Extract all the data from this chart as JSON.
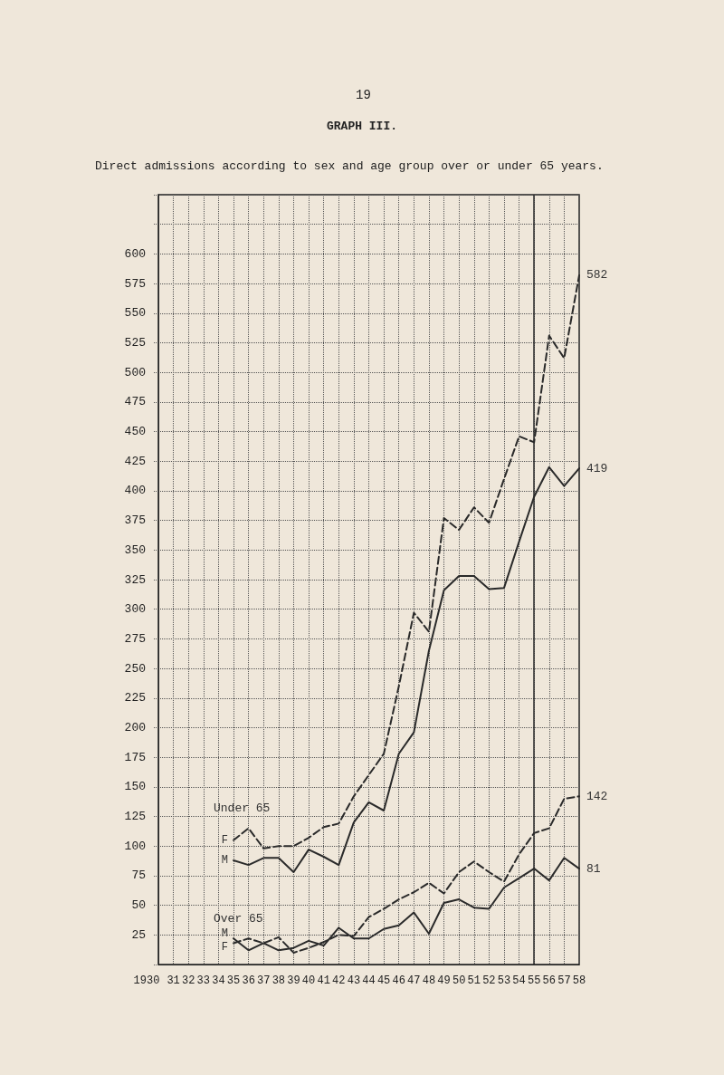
{
  "chart_data": {
    "type": "line",
    "title": "GRAPH III.",
    "subtitle": "Direct admissions according to sex and age group over or under 65 years.",
    "annotations": [
      "19",
      "Under 65",
      "Over 65"
    ],
    "categories": [
      "1930",
      "31",
      "32",
      "33",
      "34",
      "35",
      "36",
      "37",
      "38",
      "39",
      "40",
      "41",
      "42",
      "43",
      "44",
      "45",
      "46",
      "47",
      "48",
      "49",
      "50",
      "51",
      "52",
      "53",
      "54",
      "55",
      "56",
      "57",
      "58"
    ],
    "series": [
      {
        "name": "F",
        "color": "#2a2a2a",
        "line_style": "dashed",
        "values": [
          null,
          null,
          null,
          null,
          null,
          105,
          115,
          98,
          100,
          100,
          107,
          116,
          119,
          142,
          160,
          178,
          235,
          297,
          281,
          377,
          367,
          386,
          373,
          410,
          446,
          441,
          531,
          512,
          582
        ],
        "value_labels": [
          null,
          null,
          null,
          null,
          null,
          null,
          null,
          null,
          null,
          null,
          null,
          null,
          null,
          null,
          null,
          null,
          null,
          null,
          null,
          null,
          null,
          null,
          null,
          null,
          null,
          null,
          null,
          null,
          "582"
        ]
      },
      {
        "name": "M",
        "color": "#2a2a2a",
        "line_style": "solid",
        "values": [
          null,
          null,
          null,
          null,
          null,
          88,
          84,
          90,
          90,
          78,
          97,
          91,
          84,
          120,
          137,
          130,
          178,
          196,
          265,
          316,
          328,
          328,
          317,
          318,
          357,
          395,
          420,
          404,
          419
        ],
        "value_labels": [
          null,
          null,
          null,
          null,
          null,
          null,
          null,
          null,
          null,
          null,
          null,
          null,
          null,
          null,
          null,
          null,
          null,
          null,
          null,
          null,
          null,
          null,
          null,
          null,
          null,
          null,
          null,
          null,
          "419"
        ]
      },
      {
        "name": "M",
        "color": "#2a2a2a",
        "line_style": "solid",
        "values": [
          null,
          null,
          null,
          null,
          null,
          22,
          12,
          18,
          12,
          14,
          20,
          16,
          31,
          22,
          22,
          30,
          33,
          44,
          26,
          52,
          55,
          48,
          47,
          65,
          73,
          81,
          71,
          90,
          81
        ],
        "value_labels": [
          null,
          null,
          null,
          null,
          null,
          null,
          null,
          null,
          null,
          null,
          null,
          null,
          null,
          null,
          null,
          null,
          null,
          null,
          null,
          null,
          null,
          null,
          null,
          null,
          null,
          null,
          null,
          null,
          "81"
        ]
      },
      {
        "name": "F",
        "color": "#2a2a2a",
        "line_style": "dashed",
        "values": [
          null,
          null,
          null,
          null,
          null,
          18,
          22,
          18,
          23,
          10,
          14,
          19,
          25,
          24,
          40,
          47,
          55,
          61,
          69,
          60,
          78,
          87,
          78,
          70,
          93,
          111,
          115,
          140,
          142
        ],
        "value_labels": [
          null,
          null,
          null,
          null,
          null,
          null,
          null,
          null,
          null,
          null,
          null,
          null,
          null,
          null,
          null,
          null,
          null,
          null,
          null,
          null,
          null,
          null,
          null,
          null,
          null,
          null,
          null,
          null,
          "142"
        ]
      }
    ],
    "ylim": [
      0,
      650
    ],
    "yticks": [
      {
        "value": 0,
        "label": null
      },
      25,
      50,
      75,
      100,
      125,
      150,
      175,
      200,
      225,
      250,
      275,
      300,
      325,
      350,
      375,
      400,
      425,
      450,
      475,
      500,
      525,
      550,
      575,
      600,
      {
        "value": 625,
        "label": null
      },
      {
        "value": 650,
        "label": null
      }
    ],
    "ref_lines": [
      {
        "axis": "x",
        "value": "55",
        "color": "#2a2a2a"
      }
    ],
    "grid": true,
    "marker": "none",
    "legend": false
  }
}
